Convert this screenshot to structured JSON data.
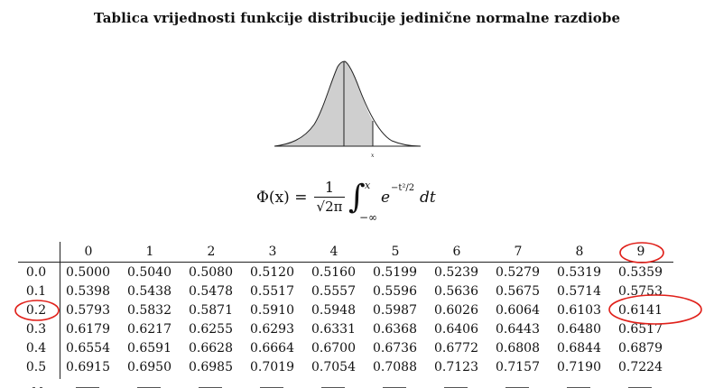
{
  "title": "Tablica vrijednosti funkcije distribucije jedinične normalne razdiobe",
  "figure": {
    "x_label": "x"
  },
  "formula": {
    "lhs": "Φ(x) =",
    "numerator": "1",
    "denominator": "√2π",
    "integral_sign": "∫",
    "upper_limit": "x",
    "lower_limit": "−∞",
    "base": "e",
    "exponent": "−t²/2",
    "differential": "dt"
  },
  "table": {
    "column_headers": [
      "0",
      "1",
      "2",
      "3",
      "4",
      "5",
      "6",
      "7",
      "8",
      "9"
    ],
    "rows": [
      {
        "label": "0.0",
        "values": [
          "0.5000",
          "0.5040",
          "0.5080",
          "0.5120",
          "0.5160",
          "0.5199",
          "0.5239",
          "0.5279",
          "0.5319",
          "0.5359"
        ]
      },
      {
        "label": "0.1",
        "values": [
          "0.5398",
          "0.5438",
          "0.5478",
          "0.5517",
          "0.5557",
          "0.5596",
          "0.5636",
          "0.5675",
          "0.5714",
          "0.5753"
        ]
      },
      {
        "label": "0.2",
        "values": [
          "0.5793",
          "0.5832",
          "0.5871",
          "0.5910",
          "0.5948",
          "0.5987",
          "0.6026",
          "0.6064",
          "0.6103",
          "0.6141"
        ]
      },
      {
        "label": "0.3",
        "values": [
          "0.6179",
          "0.6217",
          "0.6255",
          "0.6293",
          "0.6331",
          "0.6368",
          "0.6406",
          "0.6443",
          "0.6480",
          "0.6517"
        ]
      },
      {
        "label": "0.4",
        "values": [
          "0.6554",
          "0.6591",
          "0.6628",
          "0.6664",
          "0.6700",
          "0.6736",
          "0.6772",
          "0.6808",
          "0.6844",
          "0.6879"
        ]
      },
      {
        "label": "0.5",
        "values": [
          "0.6915",
          "0.6950",
          "0.6985",
          "0.7019",
          "0.7054",
          "0.7088",
          "0.7123",
          "0.7157",
          "0.7190",
          "0.7224"
        ]
      }
    ]
  },
  "annotations": {
    "color": "#e0201a",
    "circled": [
      "column-header-9",
      "row-label-0.2",
      "value-0.2-9"
    ]
  }
}
